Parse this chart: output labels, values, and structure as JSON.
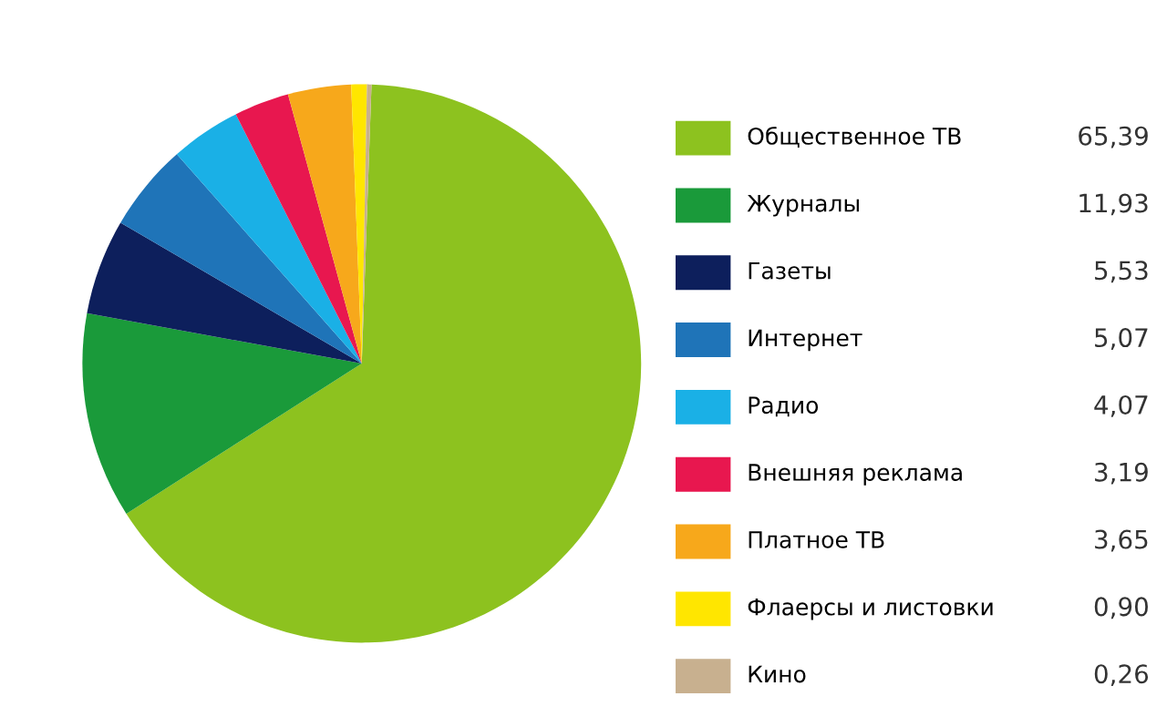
{
  "chart_data": {
    "type": "pie",
    "categories": [
      "Общественное ТВ",
      "Журналы",
      "Газеты",
      "Интернет",
      "Радио",
      "Внешняя реклама",
      "Платное ТВ",
      "Флаерсы и листовки",
      "Кино"
    ],
    "values": [
      65.39,
      11.93,
      5.53,
      5.07,
      4.07,
      3.19,
      3.65,
      0.9,
      0.26
    ],
    "value_labels": [
      "65,39",
      "11,93",
      "5,53",
      "5,07",
      "4,07",
      "3,19",
      "3,65",
      "0,90",
      "0,26"
    ],
    "colors": [
      "#8dc21f",
      "#1a9a3a",
      "#0d1f5c",
      "#1f74b8",
      "#1ab0e6",
      "#e8174f",
      "#f7a81b",
      "#ffe600",
      "#c8b08f"
    ],
    "legend": "right"
  }
}
